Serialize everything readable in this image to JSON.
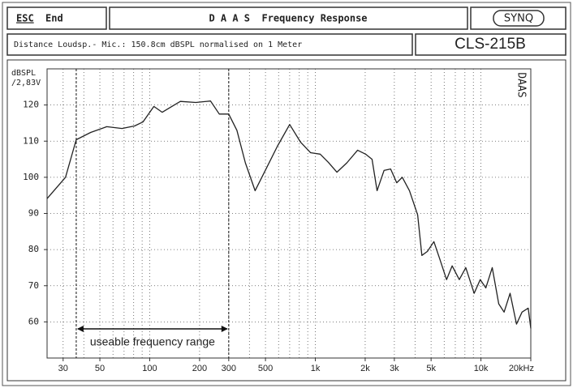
{
  "header": {
    "esc": "ESC",
    "end": "End",
    "title": "D A A S  Frequency Response",
    "logo": "SYNQ",
    "info": "Distance Loudsp.- Mic.: 150.8cm dBSPL normalised on 1 Meter",
    "model": "CLS-215B"
  },
  "chart_data": {
    "type": "line",
    "log_x": true,
    "grid": true,
    "y_label": [
      "dBSPL",
      "/2,83V"
    ],
    "watermark": "DAAS",
    "annotation": "useable frequency range",
    "range_markers": [
      36,
      300
    ],
    "xlim": [
      24,
      20000
    ],
    "ylim": [
      50,
      130
    ],
    "xticks": [
      30,
      50,
      100,
      200,
      300,
      500,
      {
        "value": 1000,
        "label": "1k"
      },
      {
        "value": 2000,
        "label": "2k"
      },
      {
        "value": 3000,
        "label": "3k"
      },
      {
        "value": 5000,
        "label": "5k"
      },
      {
        "value": 10000,
        "label": "10k"
      },
      {
        "value": 20000,
        "label": "20kHz"
      }
    ],
    "xgrid": [
      30,
      40,
      50,
      60,
      70,
      80,
      90,
      100,
      200,
      300,
      400,
      500,
      600,
      700,
      800,
      900,
      1000,
      2000,
      3000,
      4000,
      5000,
      6000,
      7000,
      8000,
      9000,
      10000
    ],
    "yticks": [
      60,
      70,
      80,
      90,
      100,
      110,
      120
    ],
    "series": [
      {
        "name": "CLS-215B",
        "color": "#222222",
        "x": [
          24,
          31,
          36,
          44,
          55,
          68,
          81,
          91,
          106,
          119,
          136,
          153,
          190,
          233,
          263,
          300,
          336,
          378,
          433,
          500,
          590,
          700,
          815,
          935,
          1070,
          1200,
          1350,
          1550,
          1800,
          2010,
          2200,
          2360,
          2600,
          2850,
          3100,
          3350,
          3700,
          4150,
          4400,
          4750,
          5200,
          5650,
          6200,
          6700,
          7400,
          8100,
          9100,
          9900,
          10700,
          11700,
          12800,
          13800,
          15000,
          16400,
          17700,
          19300,
          20000
        ],
        "values": [
          94.1,
          100,
          110.4,
          112.4,
          114,
          113.5,
          114.2,
          115.3,
          119.6,
          118,
          119.6,
          121,
          120.7,
          121.1,
          117.5,
          117.5,
          113,
          104,
          96.3,
          102,
          108.6,
          114.6,
          109.7,
          106.8,
          106.4,
          104.1,
          101.4,
          104,
          107.5,
          106.4,
          105,
          96.3,
          101.9,
          102.3,
          98.5,
          100,
          96.3,
          89.6,
          78.4,
          79.5,
          82.2,
          77.3,
          71.7,
          75.5,
          71.7,
          75,
          67.9,
          71.7,
          69.4,
          75,
          65,
          62.7,
          67.9,
          59.4,
          62.7,
          63.8,
          58.2
        ]
      }
    ]
  }
}
